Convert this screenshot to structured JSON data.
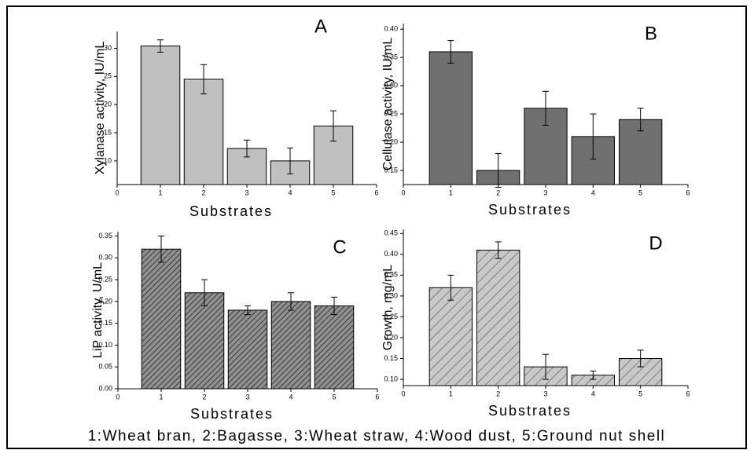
{
  "chart_data": [
    {
      "type": "bar",
      "title": "A",
      "x_label": "Substrates",
      "y_label": "Xylanase activity, IU/mL",
      "categories": [
        1,
        2,
        3,
        4,
        5
      ],
      "values": [
        30.4,
        24.5,
        12.2,
        10.0,
        16.2
      ],
      "errors": [
        1.1,
        2.6,
        1.5,
        2.3,
        2.7
      ],
      "color": "#c0c0c0",
      "pattern": "solid",
      "xlim": [
        0,
        6
      ],
      "xticks": [
        0,
        1,
        2,
        3,
        4,
        5,
        6
      ],
      "ylim": [
        5.8,
        33
      ],
      "yticks": [
        10,
        15,
        20,
        25,
        30
      ]
    },
    {
      "type": "bar",
      "title": "B",
      "x_label": "Substrates",
      "y_label": "Cellulase activity, IU/mL",
      "categories": [
        1,
        2,
        3,
        4,
        5
      ],
      "values": [
        0.36,
        0.15,
        0.26,
        0.21,
        0.24
      ],
      "errors": [
        0.02,
        0.03,
        0.03,
        0.04,
        0.02
      ],
      "color": "#707070",
      "pattern": "solid",
      "xlim": [
        0,
        6
      ],
      "xticks": [
        0,
        1,
        2,
        3,
        4,
        5,
        6
      ],
      "ylim": [
        0.125,
        0.41
      ],
      "yticks": [
        {
          "value": 0.15,
          "label": "0.15"
        },
        {
          "value": 0.2,
          "label": "0.20"
        },
        {
          "value": 0.25,
          "label": "0.25"
        },
        {
          "value": 0.3,
          "label": "0.30"
        },
        {
          "value": 0.35,
          "label": "0.35"
        },
        {
          "value": 0.4,
          "label": "0.40"
        }
      ]
    },
    {
      "type": "bar",
      "title": "C",
      "x_label": "Substrates",
      "y_label": "LiP activity, U/mL",
      "categories": [
        1,
        2,
        3,
        4,
        5
      ],
      "values": [
        0.32,
        0.22,
        0.18,
        0.2,
        0.19
      ],
      "errors": [
        0.03,
        0.03,
        0.01,
        0.02,
        0.02
      ],
      "color": "#909090",
      "pattern": "hatch-dense",
      "xlim": [
        0,
        6
      ],
      "xticks": [
        0,
        1,
        2,
        3,
        4,
        5,
        6
      ],
      "ylim": [
        0,
        0.36
      ],
      "yticks": [
        {
          "value": 0,
          "label": "0.00"
        },
        {
          "value": 0.05,
          "label": "0.05"
        },
        {
          "value": 0.1,
          "label": "0.10"
        },
        {
          "value": 0.15,
          "label": "0.15"
        },
        {
          "value": 0.2,
          "label": "0.20"
        },
        {
          "value": 0.25,
          "label": "0.25"
        },
        {
          "value": 0.3,
          "label": "0.30"
        },
        {
          "value": 0.35,
          "label": "0.35"
        }
      ]
    },
    {
      "type": "bar",
      "title": "D",
      "x_label": "Substrates",
      "y_label": "Growth, mg/mL",
      "categories": [
        1,
        2,
        3,
        4,
        5
      ],
      "values": [
        0.32,
        0.41,
        0.13,
        0.11,
        0.15
      ],
      "errors": [
        0.03,
        0.02,
        0.03,
        0.01,
        0.02
      ],
      "color": "#c8c8c8",
      "pattern": "hatch",
      "xlim": [
        0,
        6
      ],
      "xticks": [
        0,
        1,
        2,
        3,
        4,
        5,
        6
      ],
      "ylim": [
        0.085,
        0.46
      ],
      "yticks": [
        {
          "value": 0.1,
          "label": "0.10"
        },
        {
          "value": 0.15,
          "label": "0.15"
        },
        {
          "value": 0.2,
          "label": "0.20"
        },
        {
          "value": 0.25,
          "label": "0.25"
        },
        {
          "value": 0.3,
          "label": "0.30"
        },
        {
          "value": 0.35,
          "label": "0.35"
        },
        {
          "value": 0.4,
          "label": "0.40"
        },
        {
          "value": 0.45,
          "label": "0.45"
        }
      ]
    }
  ],
  "footer": "1:Wheat bran, 2:Bagasse, 3:Wheat straw, 4:Wood dust, 5:Ground nut shell"
}
